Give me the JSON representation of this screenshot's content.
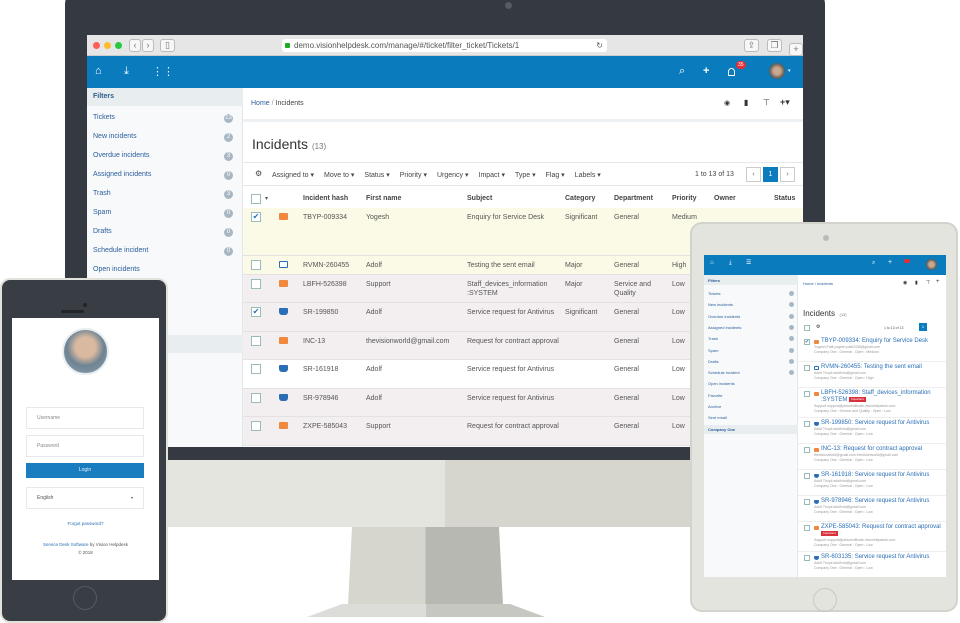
{
  "browser": {
    "url": "demo.visionhelpdesk.com/manage/#/ticket/filter_ticket/Tickets/1",
    "add_tab": "+"
  },
  "colors": {
    "brand": "#0a7bbd",
    "highlight_row": "#fafae6",
    "pink_row": "#f3eef0",
    "important": "#d9303a",
    "email_icon": "#f0883e"
  },
  "appbar": {
    "icons": [
      "home-icon",
      "download-icon",
      "grid-icon",
      "search-icon",
      "plus-icon",
      "bell-icon",
      "avatar"
    ],
    "notification_count": "35"
  },
  "sidebar": {
    "title": "Filters",
    "items": [
      {
        "label": "Tickets",
        "count": "13"
      },
      {
        "label": "New incidents",
        "count": "2"
      },
      {
        "label": "Overdue incidents",
        "count": "3"
      },
      {
        "label": "Assigned incidents",
        "count": "0"
      },
      {
        "label": "Trash",
        "count": "3"
      },
      {
        "label": "Spam",
        "count": "0"
      },
      {
        "label": "Drafts",
        "count": "0"
      },
      {
        "label": "Schedule incident",
        "count": "0"
      },
      {
        "label": "Open incidents"
      }
    ]
  },
  "breadcrumb": {
    "home": "Home",
    "sep": "/",
    "current": "Incidents"
  },
  "page": {
    "title": "Incidents",
    "count": "(13)"
  },
  "toolbar": {
    "actions": [
      "Assigned to ▾",
      "Move to ▾",
      "Status ▾",
      "Priority ▾",
      "Urgency ▾",
      "Impact ▾",
      "Type ▾",
      "Flag ▾",
      "Labels ▾"
    ],
    "range": "1 to 13 of 13",
    "page": "1",
    "prev": "‹",
    "next": "›"
  },
  "table": {
    "headers": [
      "Incident hash",
      "First name",
      "Subject",
      "Category",
      "Department",
      "Priority",
      "Owner",
      "Status"
    ],
    "rows": [
      {
        "checked": true,
        "icon": "email",
        "hash": "TBYP-009334",
        "first": "Yogesh",
        "subject": "Enquiry for Service Desk",
        "category": "Significant",
        "department": "General",
        "priority": "Medium"
      },
      {
        "checked": false,
        "icon": "monitor",
        "hash": "RVMN-260455",
        "first": "Adolf",
        "subject": "Testing the sent email",
        "category": "Major",
        "department": "General",
        "priority": "High"
      },
      {
        "checked": false,
        "icon": "email",
        "hash": "LBFH-526398",
        "first": "Support",
        "subject": "Staff_devices_information :SYSTEM",
        "category": "Major",
        "department": "Service and Quality",
        "priority": "Low"
      },
      {
        "checked": true,
        "icon": "cart",
        "hash": "SR-199850",
        "first": "Adolf",
        "subject": "Service request for Antivirus",
        "category": "Significant",
        "department": "General",
        "priority": "Low"
      },
      {
        "checked": false,
        "icon": "email",
        "hash": "INC-13",
        "first": "thevisionworld@gmail.com",
        "subject": "Request for contract approval",
        "category": "",
        "department": "General",
        "priority": "Low"
      },
      {
        "checked": false,
        "icon": "cart",
        "hash": "SR-161918",
        "first": "Adolf",
        "subject": "Service request for Antivirus",
        "category": "",
        "department": "General",
        "priority": "Low"
      },
      {
        "checked": false,
        "icon": "cart",
        "hash": "SR-978946",
        "first": "Adolf",
        "subject": "Service request for Antivirus",
        "category": "",
        "department": "General",
        "priority": "Low"
      },
      {
        "checked": false,
        "icon": "email",
        "hash": "ZXPE-585043",
        "first": "Support",
        "subject": "Request for contract approval",
        "category": "",
        "department": "General",
        "priority": "Low"
      }
    ]
  },
  "tablet": {
    "sidebar_title": "Filters",
    "sidebar_items": [
      {
        "label": "Tickets",
        "count": true
      },
      {
        "label": "New incidents",
        "count": true
      },
      {
        "label": "Overdue incidents",
        "count": true
      },
      {
        "label": "Assigned incidents",
        "count": true
      },
      {
        "label": "Trash",
        "count": true
      },
      {
        "label": "Spam",
        "count": true
      },
      {
        "label": "Drafts",
        "count": true
      },
      {
        "label": "Schedule incident",
        "count": true
      },
      {
        "label": "Open incidents"
      },
      {
        "label": "Favorite"
      },
      {
        "label": "Archive"
      },
      {
        "label": "Sent email"
      },
      {
        "label": "Company One",
        "active": true
      }
    ],
    "breadcrumb": "Home / Incidents",
    "title": "Incidents",
    "count": "(13)",
    "range": "1 to 13 of 13",
    "page": "1",
    "list": [
      {
        "checked": true,
        "icon": "email",
        "title": "TBYP-009334: Enquiry for Service Desk",
        "from": "Yogesh Patil  yogesh.patil2436@gmail.com",
        "meta": "Company One : General : Open : Medium"
      },
      {
        "icon": "monitor",
        "title": "RVMN-260455: Testing the sent email",
        "from": "Adolf Thopil  adolfvhd@gmail.com",
        "meta": "Company One : General : Open : High"
      },
      {
        "icon": "email",
        "title": "LBFH-526398: Staff_devices_information :SYSTEM",
        "badge": "Important",
        "from": "Support  support@pinkcertificate.visionhelpdesk.com",
        "meta": "Company One : Service and Quality : Open : Low"
      },
      {
        "icon": "cart",
        "title": "SR-199850: Service request for Antivirus",
        "from": "Adolf Thopil  adolfvhd@gmail.com",
        "meta": "Company One : General : Open : Low"
      },
      {
        "icon": "email",
        "title": "INC-13: Request for contract approval",
        "from": "thevisionworld@gmail.com  thevisionworld@gmail.com",
        "meta": "Company One : General : Open : Low"
      },
      {
        "icon": "cart",
        "title": "SR-161918: Service request for Antivirus",
        "from": "Adolf Thopil  adolfvhd@gmail.com",
        "meta": "Company One : General : Open : Low"
      },
      {
        "icon": "cart",
        "title": "SR-978946: Service request for Antivirus",
        "from": "Adolf Thopil  adolfvhd@gmail.com",
        "meta": "Company One : General : Open : Low"
      },
      {
        "icon": "email",
        "title": "ZXPE-585043: Request for contract approval",
        "badge": "Important",
        "from": "Support  support@pinkcertificate.visionhelpdesk.com",
        "meta": "Company One : General : Open : Low"
      },
      {
        "icon": "cart",
        "title": "SR-603135: Service request for Antivirus",
        "from": "Adolf Thopil  adolfvhd@gmail.com",
        "meta": "Company One : General : Open : Low"
      }
    ]
  },
  "phone": {
    "username_placeholder": "Username",
    "password_placeholder": "Password",
    "login": "Login",
    "language": "English",
    "forgot": "Forgot password?",
    "footer_link": "Service Desk Software",
    "footer_rest": " by Vision Helpdesk",
    "copyright": "© 2018"
  }
}
